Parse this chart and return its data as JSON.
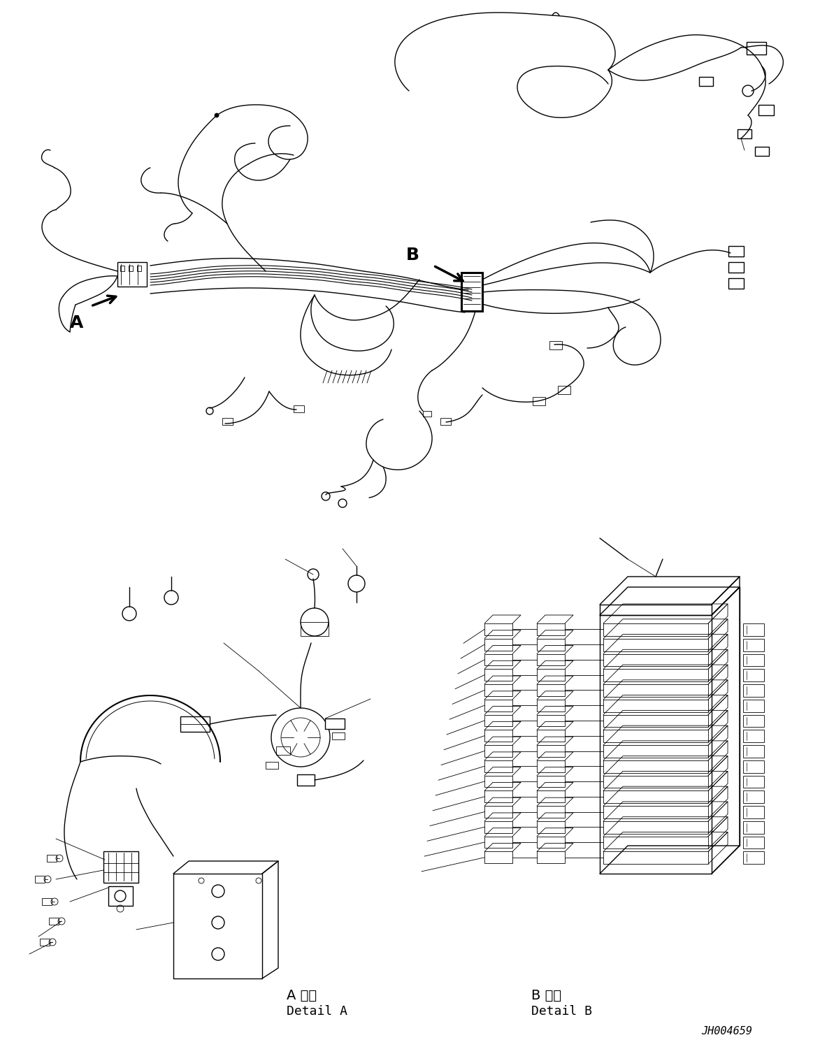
{
  "background_color": "#ffffff",
  "fig_width": 11.63,
  "fig_height": 14.88,
  "dpi": 100,
  "label_A": "A",
  "label_B": "B",
  "detail_A_line1": "A 詳細",
  "detail_A_line2": "Detail A",
  "detail_B_line1": "B 詳細",
  "detail_B_line2": "Detail B",
  "part_number": "JH004659",
  "lc": "#000000",
  "lw": 1.0,
  "tlw": 0.6,
  "thw": 2.2
}
